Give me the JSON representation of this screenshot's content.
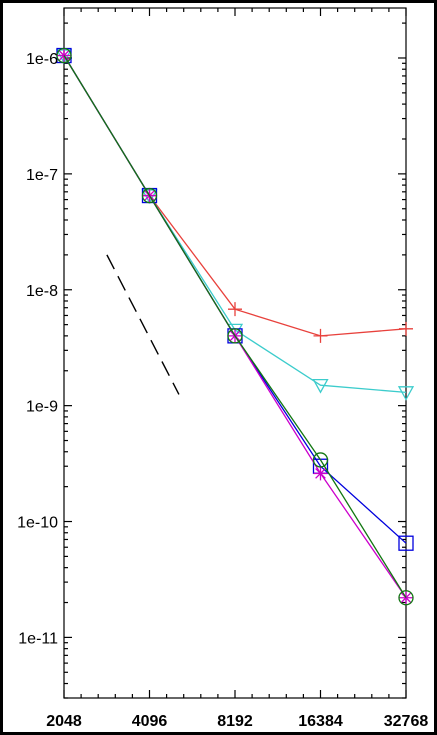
{
  "chart_data": {
    "type": "line",
    "title": "",
    "xlabel": "",
    "ylabel": "",
    "x_scale": "log2",
    "y_scale": "log10",
    "x": [
      2048,
      4096,
      8192,
      16384,
      32768
    ],
    "x_tick_labels": [
      "2048",
      "4096",
      "8192",
      "16384",
      "32768"
    ],
    "y_ticks": [
      1e-06,
      1e-07,
      1e-08,
      1e-09,
      1e-10,
      1e-11
    ],
    "y_tick_labels": [
      "1e-6",
      "1e-7",
      "1e-8",
      "1e-9",
      "1e-10",
      "1e-11"
    ],
    "xlim": [
      2048,
      32768
    ],
    "ylim": [
      3e-12,
      2.7e-06
    ],
    "grid": false,
    "legend": "none",
    "series": [
      {
        "color": "#e8413c",
        "marker": "plus",
        "values": [
          1.05e-06,
          6.5e-08,
          6.8e-09,
          4e-09,
          4.6e-09
        ]
      },
      {
        "color": "#3ccccc",
        "marker": "triangle-down",
        "values": [
          1.05e-06,
          6.5e-08,
          4.5e-09,
          1.5e-09,
          1.3e-09
        ]
      },
      {
        "color": "#0000dd",
        "marker": "square",
        "values": [
          1.05e-06,
          6.5e-08,
          4e-09,
          3e-10,
          6.5e-11
        ]
      },
      {
        "color": "#cc00cc",
        "marker": "asterisk",
        "values": [
          1.05e-06,
          6.5e-08,
          4e-09,
          2.6e-10,
          2.2e-11
        ]
      },
      {
        "color": "#117711",
        "marker": "circle",
        "values": [
          1.05e-06,
          6.5e-08,
          4e-09,
          3.4e-10,
          2.2e-11
        ]
      }
    ],
    "reference_line": {
      "color": "#000000",
      "dash": "dashed",
      "x": [
        2900,
        5200
      ],
      "values": [
        2e-08,
        1.25e-09
      ]
    }
  }
}
